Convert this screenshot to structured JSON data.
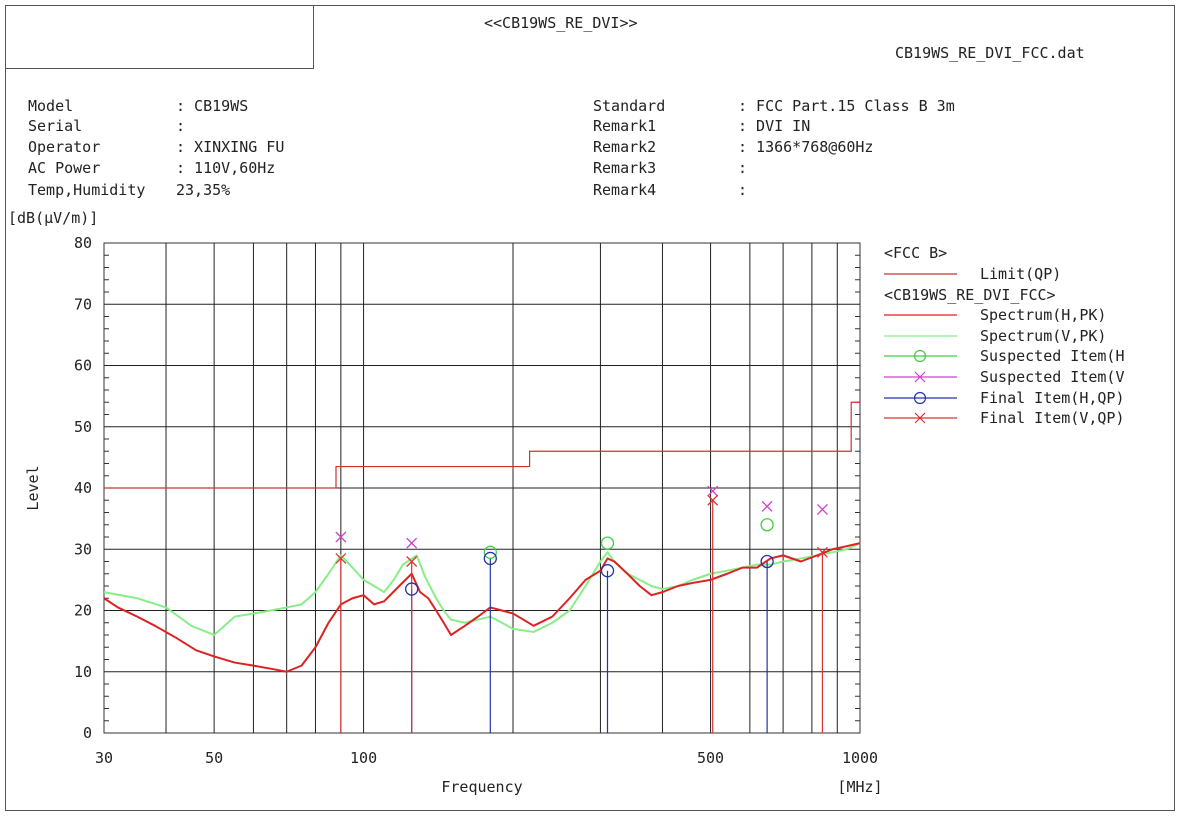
{
  "header": {
    "title": "<<CB19WS_RE_DVI>>",
    "file": "CB19WS_RE_DVI_FCC.dat"
  },
  "info": {
    "left": [
      {
        "label": "Model",
        "value": ": CB19WS"
      },
      {
        "label": "Serial",
        "value": ":"
      },
      {
        "label": "Operator",
        "value": ": XINXING FU"
      },
      {
        "label": "AC Power",
        "value": ": 110V,60Hz"
      },
      {
        "label": "Temp,Humidity",
        "value": "23,35%"
      }
    ],
    "right": [
      {
        "label": "Standard",
        "value": ": FCC Part.15 Class B 3m"
      },
      {
        "label": "Remark1",
        "value": ": DVI IN"
      },
      {
        "label": "Remark2",
        "value": ": 1366*768@60Hz"
      },
      {
        "label": "Remark3",
        "value": ":"
      },
      {
        "label": "Remark4",
        "value": ":"
      }
    ]
  },
  "legend": {
    "group1": "<FCC B>",
    "group2": "<CB19WS_RE_DVI_FCC>",
    "items": [
      {
        "label": "Limit(QP)",
        "color": "#cc3333",
        "marker": "none",
        "group": 1
      },
      {
        "label": "Spectrum(H,PK)",
        "color": "#dd2222",
        "marker": "none",
        "group": 2
      },
      {
        "label": "Spectrum(V,PK)",
        "color": "#88ee88",
        "marker": "none",
        "group": 2
      },
      {
        "label": "Suspected Item(H",
        "color": "#44cc44",
        "marker": "circle",
        "group": 2
      },
      {
        "label": "Suspected Item(V",
        "color": "#cc44cc",
        "marker": "cross",
        "group": 2
      },
      {
        "label": "Final Item(H,QP)",
        "color": "#2233aa",
        "marker": "circle",
        "group": 2
      },
      {
        "label": "Final Item(V,QP)",
        "color": "#dd3333",
        "marker": "cross",
        "group": 2
      }
    ]
  },
  "chart_data": {
    "type": "line",
    "xlabel": "Frequency",
    "ylabel": "Level",
    "yunit": "[dB(µV/m)]",
    "xunit": "[MHz]",
    "xscale": "log",
    "xlim": [
      30,
      1000
    ],
    "ylim": [
      0,
      80
    ],
    "xticks": [
      30,
      50,
      100,
      500,
      1000
    ],
    "yticks": [
      0,
      10,
      20,
      30,
      40,
      50,
      60,
      70,
      80
    ],
    "grid": true,
    "legend_position": "right",
    "limit_line": {
      "name": "Limit(QP)",
      "points": [
        [
          30,
          40
        ],
        [
          88,
          40
        ],
        [
          88,
          43.5
        ],
        [
          216,
          43.5
        ],
        [
          216,
          46
        ],
        [
          960,
          46
        ],
        [
          960,
          54
        ],
        [
          1000,
          54
        ]
      ]
    },
    "series": [
      {
        "name": "Spectrum(H,PK)",
        "color": "#dd2222",
        "points": [
          [
            30,
            22
          ],
          [
            32,
            20.5
          ],
          [
            35,
            19
          ],
          [
            38,
            17.5
          ],
          [
            42,
            15.5
          ],
          [
            46,
            13.5
          ],
          [
            50,
            12.5
          ],
          [
            55,
            11.5
          ],
          [
            60,
            11
          ],
          [
            65,
            10.5
          ],
          [
            70,
            10
          ],
          [
            75,
            11
          ],
          [
            80,
            14
          ],
          [
            85,
            18
          ],
          [
            90,
            21
          ],
          [
            95,
            22
          ],
          [
            100,
            22.5
          ],
          [
            105,
            21
          ],
          [
            110,
            21.5
          ],
          [
            118,
            24
          ],
          [
            125,
            26
          ],
          [
            130,
            23
          ],
          [
            135,
            22
          ],
          [
            140,
            20
          ],
          [
            145,
            18
          ],
          [
            150,
            16
          ],
          [
            160,
            17.5
          ],
          [
            170,
            19
          ],
          [
            180,
            20.5
          ],
          [
            190,
            20
          ],
          [
            200,
            19.5
          ],
          [
            210,
            18.5
          ],
          [
            220,
            17.5
          ],
          [
            240,
            19
          ],
          [
            260,
            22
          ],
          [
            280,
            25
          ],
          [
            300,
            26.5
          ],
          [
            310,
            28.5
          ],
          [
            320,
            28
          ],
          [
            340,
            26
          ],
          [
            360,
            24
          ],
          [
            380,
            22.5
          ],
          [
            400,
            23
          ],
          [
            430,
            24
          ],
          [
            460,
            24.5
          ],
          [
            500,
            25
          ],
          [
            540,
            26
          ],
          [
            580,
            27
          ],
          [
            620,
            27
          ],
          [
            660,
            28.5
          ],
          [
            700,
            29
          ],
          [
            760,
            28
          ],
          [
            820,
            29
          ],
          [
            880,
            30
          ],
          [
            940,
            30.5
          ],
          [
            1000,
            31
          ]
        ]
      },
      {
        "name": "Spectrum(V,PK)",
        "color": "#88ee88",
        "points": [
          [
            30,
            23
          ],
          [
            35,
            22
          ],
          [
            40,
            20.5
          ],
          [
            45,
            17.5
          ],
          [
            50,
            16
          ],
          [
            55,
            19
          ],
          [
            60,
            19.5
          ],
          [
            65,
            20
          ],
          [
            70,
            20.5
          ],
          [
            75,
            21
          ],
          [
            80,
            23
          ],
          [
            85,
            26
          ],
          [
            90,
            29
          ],
          [
            95,
            27
          ],
          [
            100,
            25
          ],
          [
            105,
            24
          ],
          [
            110,
            23
          ],
          [
            115,
            25
          ],
          [
            120,
            27.5
          ],
          [
            128,
            29
          ],
          [
            133,
            25.5
          ],
          [
            140,
            22
          ],
          [
            145,
            20
          ],
          [
            150,
            18.5
          ],
          [
            160,
            18
          ],
          [
            170,
            18.5
          ],
          [
            180,
            19
          ],
          [
            190,
            18
          ],
          [
            200,
            17
          ],
          [
            220,
            16.5
          ],
          [
            240,
            18
          ],
          [
            260,
            20
          ],
          [
            280,
            24
          ],
          [
            300,
            28
          ],
          [
            310,
            29.5
          ],
          [
            320,
            28
          ],
          [
            340,
            26
          ],
          [
            360,
            25
          ],
          [
            380,
            24
          ],
          [
            400,
            23.5
          ],
          [
            430,
            24
          ],
          [
            460,
            25
          ],
          [
            500,
            26
          ],
          [
            540,
            26.5
          ],
          [
            580,
            27
          ],
          [
            620,
            27.5
          ],
          [
            660,
            27.5
          ],
          [
            700,
            28
          ],
          [
            760,
            28.5
          ],
          [
            820,
            29
          ],
          [
            880,
            29.5
          ],
          [
            940,
            30
          ],
          [
            1000,
            31
          ]
        ]
      }
    ],
    "suspected_h": [
      [
        180,
        29.5
      ],
      [
        310,
        31
      ],
      [
        650,
        34
      ]
    ],
    "suspected_v": [
      [
        90,
        32
      ],
      [
        125,
        31
      ],
      [
        505,
        39.5
      ],
      [
        650,
        37
      ],
      [
        840,
        36.5
      ]
    ],
    "final_h": [
      [
        125,
        23.5
      ],
      [
        180,
        28.5
      ],
      [
        310,
        26.5
      ],
      [
        650,
        28
      ]
    ],
    "final_v": [
      [
        90,
        28.5
      ],
      [
        125,
        28
      ],
      [
        505,
        38
      ],
      [
        840,
        29.5
      ]
    ]
  }
}
